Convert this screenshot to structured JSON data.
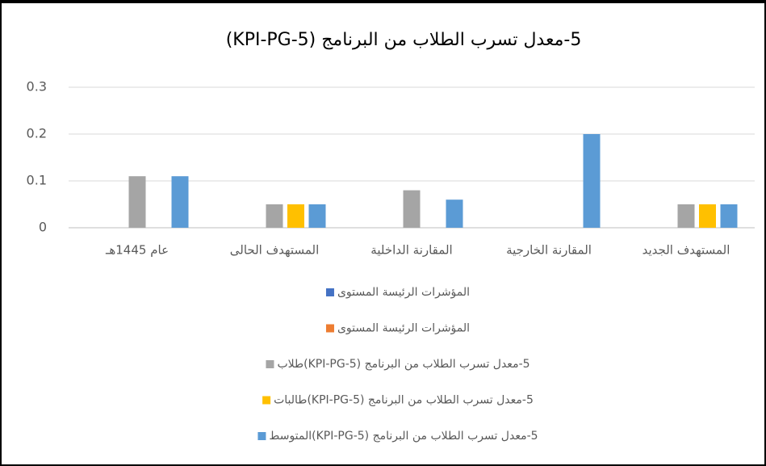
{
  "chart_data": {
    "type": "bar",
    "title": "5-معدل تسرب الطلاب من البرنامج (KPI-PG-5)",
    "categories": [
      "عام 1445هـ",
      "المستهدف الحالى",
      "المقارنة الداخلية",
      "المقارنة الخارجية",
      "المستهدف الجديد"
    ],
    "series": [
      {
        "name": "المؤشرات الرئيسة  المستوى",
        "color": "#4472c4",
        "values": [
          null,
          null,
          null,
          null,
          null
        ]
      },
      {
        "name": "المؤشرات الرئيسة  المستوى",
        "color": "#ed7d31",
        "values": [
          null,
          null,
          null,
          null,
          null
        ]
      },
      {
        "name": "5-معدل تسرب الطلاب من البرنامج  (KPI-PG-5)طلاب",
        "color": "#a5a5a5",
        "values": [
          0.11,
          0.05,
          0.08,
          null,
          0.05
        ]
      },
      {
        "name": "5-معدل تسرب الطلاب من البرنامج  (KPI-PG-5)طالبات",
        "color": "#ffc000",
        "values": [
          null,
          0.05,
          null,
          null,
          0.05
        ]
      },
      {
        "name": "5-معدل تسرب الطلاب من البرنامج  (KPI-PG-5)المتوسط",
        "color": "#5b9bd5",
        "values": [
          0.11,
          0.05,
          0.06,
          0.2,
          0.05
        ]
      }
    ],
    "ylim": [
      0,
      0.3
    ],
    "yticks": [
      0,
      0.1,
      0.2,
      0.3
    ],
    "grid": true,
    "legend": "bottom"
  }
}
